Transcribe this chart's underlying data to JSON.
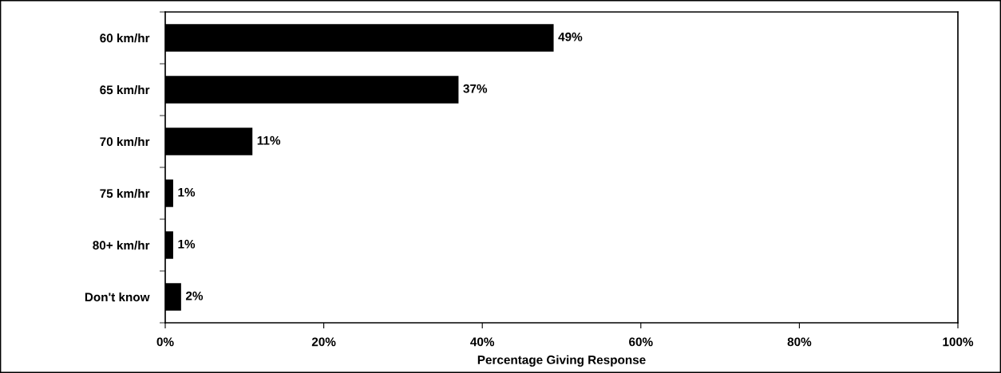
{
  "chart_data": {
    "type": "bar",
    "orientation": "horizontal",
    "xlabel": "Percentage Giving Response",
    "categories": [
      "60 km/hr",
      "65 km/hr",
      "70 km/hr",
      "75 km/hr",
      "80+ km/hr",
      "Don't know"
    ],
    "values": [
      49,
      37,
      11,
      1,
      1,
      2
    ],
    "value_labels": [
      "49%",
      "37%",
      "11%",
      "1%",
      "1%",
      "2%"
    ],
    "color": "#000000",
    "xlim": [
      0,
      100
    ],
    "xticks": [
      {
        "value": 0,
        "label": "0%"
      },
      {
        "value": 20,
        "label": "20%"
      },
      {
        "value": 40,
        "label": "40%"
      },
      {
        "value": 60,
        "label": "60%"
      },
      {
        "value": 80,
        "label": "80%"
      },
      {
        "value": 100,
        "label": "100%"
      }
    ],
    "grid": false,
    "legend": false
  }
}
